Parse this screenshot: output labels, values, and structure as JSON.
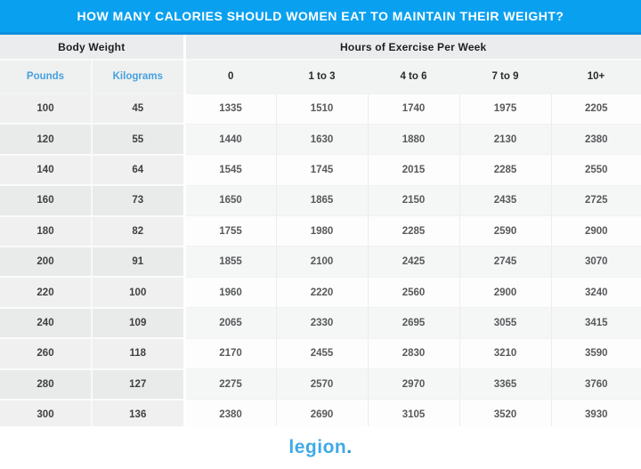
{
  "page": {
    "title": "HOW MANY CALORIES SHOULD WOMEN EAT TO MAINTAIN THEIR WEIGHT?"
  },
  "footer": {
    "logo_text": "legion",
    "logo_dot": "."
  },
  "colors": {
    "banner_blue": "#0aa0f0",
    "banner_border_blue": "#0d8ede",
    "unit_header_blue": "#47a1df",
    "logo_blue": "#3fa9e6",
    "header_gray": "#ebeced",
    "row_gray_left": "#f0f0f0",
    "row_gray_left_alt": "#e9eaea",
    "data_cell_white": "#fdfdfd",
    "data_cell_alt": "#f5f6f6",
    "data_text_gray": "#58595b"
  },
  "chart_data": {
    "type": "table",
    "title": "HOW MANY CALORIES SHOULD WOMEN EAT TO MAINTAIN THEIR WEIGHT?",
    "column_groups": [
      {
        "label": "Body Weight",
        "span": 2
      },
      {
        "label": "Hours of Exercise Per Week",
        "span": 5
      }
    ],
    "columns": [
      "Pounds",
      "Kilograms",
      "0",
      "1 to 3",
      "4 to 6",
      "7 to 9",
      "10+"
    ],
    "rows": [
      [
        100,
        45,
        1335,
        1510,
        1740,
        1975,
        2205
      ],
      [
        120,
        55,
        1440,
        1630,
        1880,
        2130,
        2380
      ],
      [
        140,
        64,
        1545,
        1745,
        2015,
        2285,
        2550
      ],
      [
        160,
        73,
        1650,
        1865,
        2150,
        2435,
        2725
      ],
      [
        180,
        82,
        1755,
        1980,
        2285,
        2590,
        2900
      ],
      [
        200,
        91,
        1855,
        2100,
        2425,
        2745,
        3070
      ],
      [
        220,
        100,
        1960,
        2220,
        2560,
        2900,
        3240
      ],
      [
        240,
        109,
        2065,
        2330,
        2695,
        3055,
        3415
      ],
      [
        260,
        118,
        2170,
        2455,
        2830,
        3210,
        3590
      ],
      [
        280,
        127,
        2275,
        2570,
        2970,
        3365,
        3760
      ],
      [
        300,
        136,
        2380,
        2690,
        3105,
        3520,
        3930
      ]
    ]
  }
}
